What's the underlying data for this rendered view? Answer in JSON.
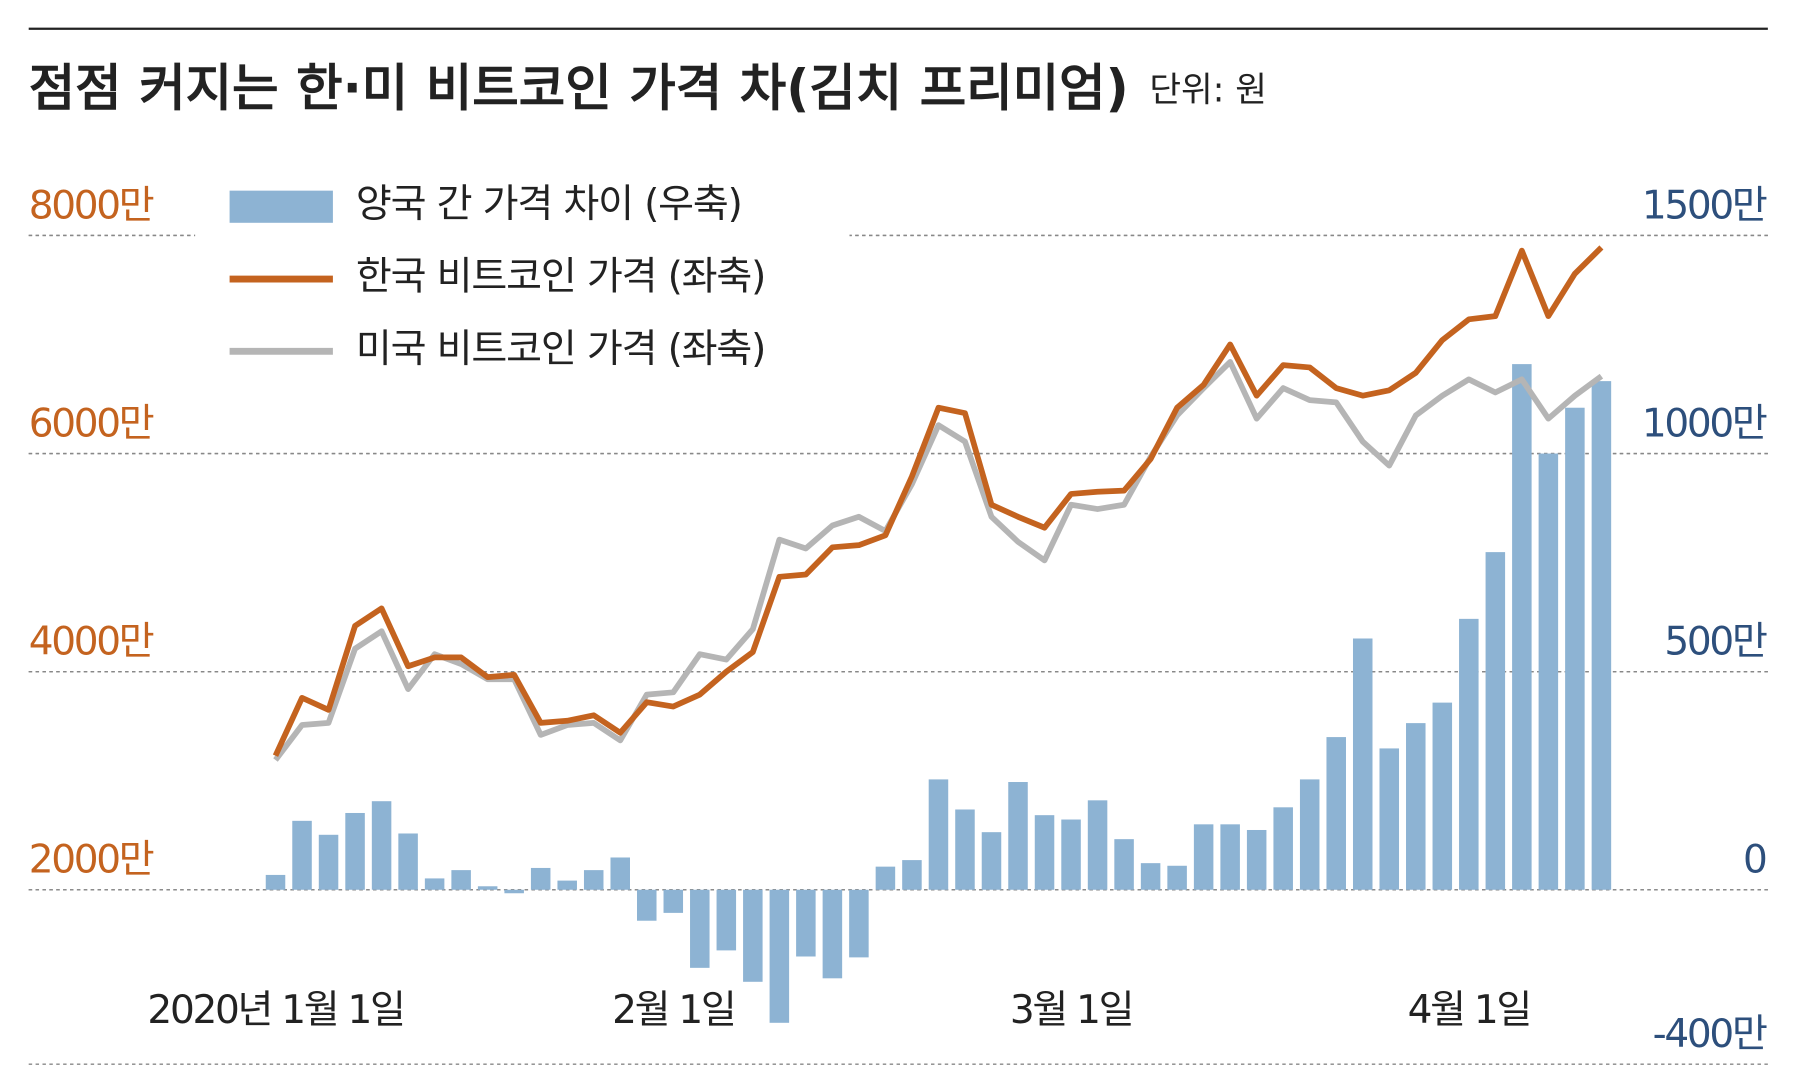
{
  "chart_data": {
    "type": "combo",
    "title": "점점 커지는 한·미 비트코인 가격 차(김치 프리미엄)",
    "subtitle": "단위: 원",
    "categories": [
      "2020년 1월 1일",
      null,
      null,
      null,
      null,
      null,
      null,
      null,
      null,
      null,
      null,
      null,
      null,
      null,
      null,
      "2월 1일",
      null,
      null,
      null,
      null,
      null,
      null,
      null,
      null,
      null,
      null,
      null,
      null,
      null,
      null,
      "3월 1일",
      null,
      null,
      null,
      null,
      null,
      null,
      null,
      null,
      null,
      null,
      null,
      null,
      null,
      null,
      "4월 1일",
      null,
      null,
      null,
      null,
      null
    ],
    "series": [
      {
        "name": "양국 간 가격 차이 (우축)",
        "type": "bar",
        "axis": "y2",
        "color": "#8db3d3",
        "values": [
          34,
          158,
          126,
          176,
          203,
          129,
          26,
          45,
          8,
          -8,
          50,
          21,
          45,
          74,
          -71,
          -53,
          -179,
          -139,
          -211,
          -305,
          -153,
          -203,
          -155,
          53,
          68,
          253,
          184,
          132,
          247,
          171,
          161,
          205,
          116,
          61,
          55,
          150,
          150,
          137,
          189,
          253,
          350,
          576,
          324,
          382,
          429,
          621,
          774,
          1205,
          1000,
          1105,
          1166
        ]
      },
      {
        "name": "한국 비트코인 가격 (좌축)",
        "type": "line",
        "color": "#c4631f",
        "values": [
          3230,
          3760,
          3650,
          4420,
          4580,
          4050,
          4130,
          4130,
          3950,
          3970,
          3530,
          3550,
          3600,
          3440,
          3720,
          3680,
          3790,
          4000,
          4180,
          4870,
          4890,
          5140,
          5160,
          5250,
          5790,
          6420,
          6370,
          5530,
          5420,
          5320,
          5630,
          5650,
          5660,
          5950,
          6420,
          6630,
          7000,
          6530,
          6810,
          6790,
          6600,
          6530,
          6580,
          6740,
          7040,
          7230,
          7260,
          7860,
          7260,
          7650,
          7890
        ]
      },
      {
        "name": "미국 비트코인 가격 (좌축)",
        "type": "line",
        "color": "#b5b5b5",
        "values": [
          3190,
          3510,
          3530,
          4210,
          4370,
          3840,
          4160,
          4070,
          3930,
          3930,
          3420,
          3510,
          3530,
          3370,
          3790,
          3810,
          4160,
          4110,
          4390,
          5210,
          5130,
          5340,
          5420,
          5290,
          5720,
          6260,
          6110,
          5420,
          5190,
          5020,
          5530,
          5490,
          5530,
          5970,
          6350,
          6600,
          6840,
          6320,
          6600,
          6490,
          6470,
          6110,
          5890,
          6350,
          6530,
          6680,
          6560,
          6680,
          6320,
          6530,
          6710
        ]
      }
    ],
    "ylim": [
      400,
      8000
    ],
    "yticks": [
      {
        "value": 2000,
        "label": "2000만"
      },
      {
        "value": 4000,
        "label": "4000만"
      },
      {
        "value": 6000,
        "label": "6000만"
      },
      {
        "value": 8000,
        "label": "8000만"
      }
    ],
    "y2lim": [
      -400,
      1500
    ],
    "y2ticks": [
      {
        "value": -400,
        "label": "-400만"
      },
      0,
      {
        "value": 500,
        "label": "500만"
      },
      {
        "value": 1000,
        "label": "1000만"
      },
      {
        "value": 1500,
        "label": "1500만"
      }
    ],
    "ytick_color": "#c4631f",
    "y2tick_color": "#2d4f7c",
    "grid": true,
    "legend": "top-left"
  }
}
